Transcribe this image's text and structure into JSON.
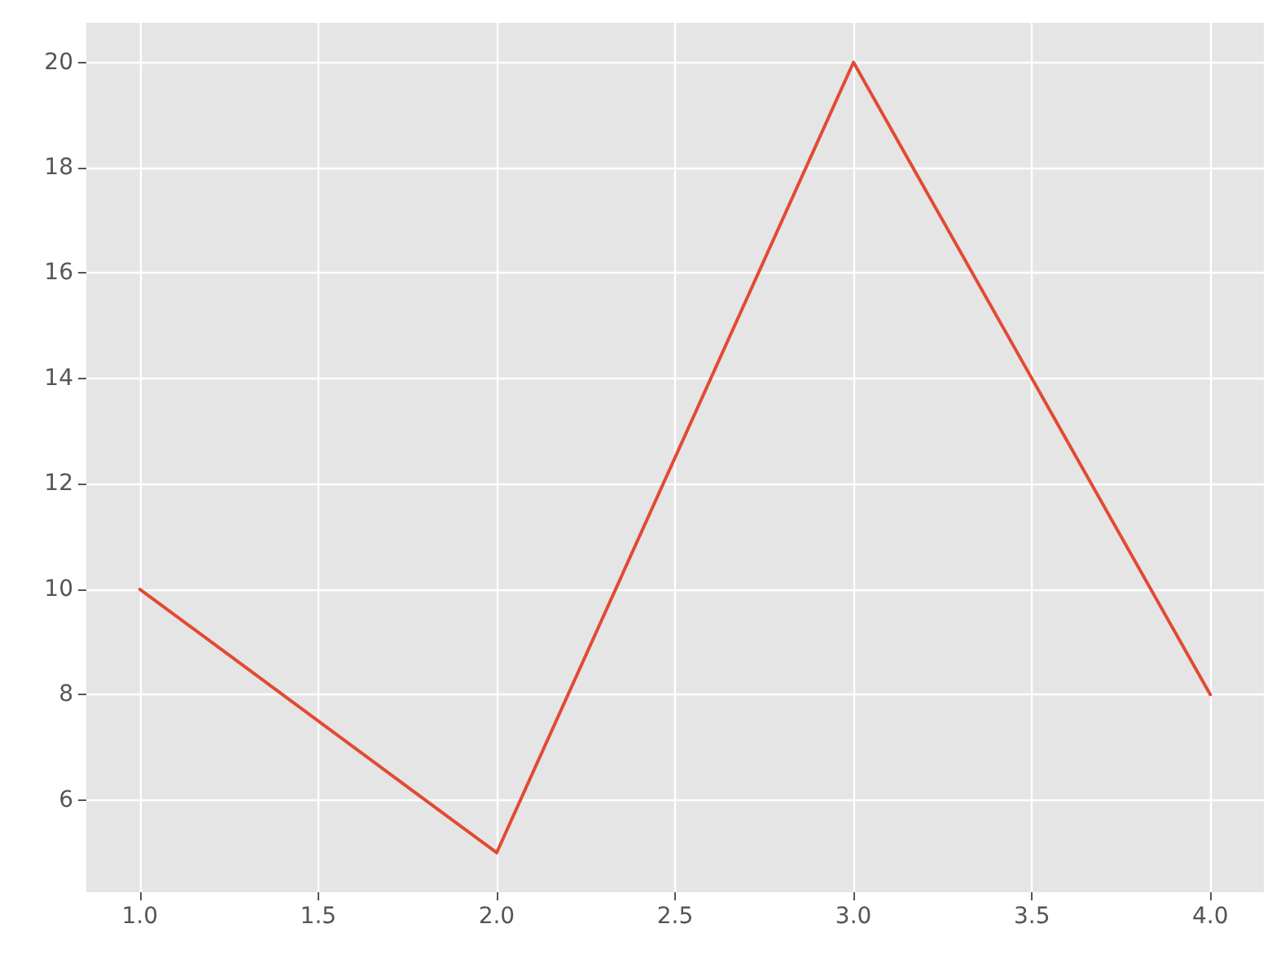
{
  "chart_data": {
    "type": "line",
    "x": [
      1,
      2,
      3,
      4
    ],
    "series": [
      {
        "color": "#e24a33",
        "values": [
          10,
          5,
          20,
          8
        ]
      }
    ],
    "xlim": [
      0.85,
      4.15
    ],
    "ylim": [
      4.25,
      20.75
    ],
    "xticks": [
      {
        "value": 1,
        "label": "1.0"
      },
      {
        "value": 1.5,
        "label": "1.5"
      },
      {
        "value": 2,
        "label": "2.0"
      },
      {
        "value": 2.5,
        "label": "2.5"
      },
      {
        "value": 3,
        "label": "3.0"
      },
      {
        "value": 3.5,
        "label": "3.5"
      },
      {
        "value": 4,
        "label": "4.0"
      }
    ],
    "yticks": [
      6,
      8,
      10,
      12,
      14,
      16,
      18,
      20
    ],
    "grid": true,
    "marker": "none",
    "line_style": "solid"
  }
}
